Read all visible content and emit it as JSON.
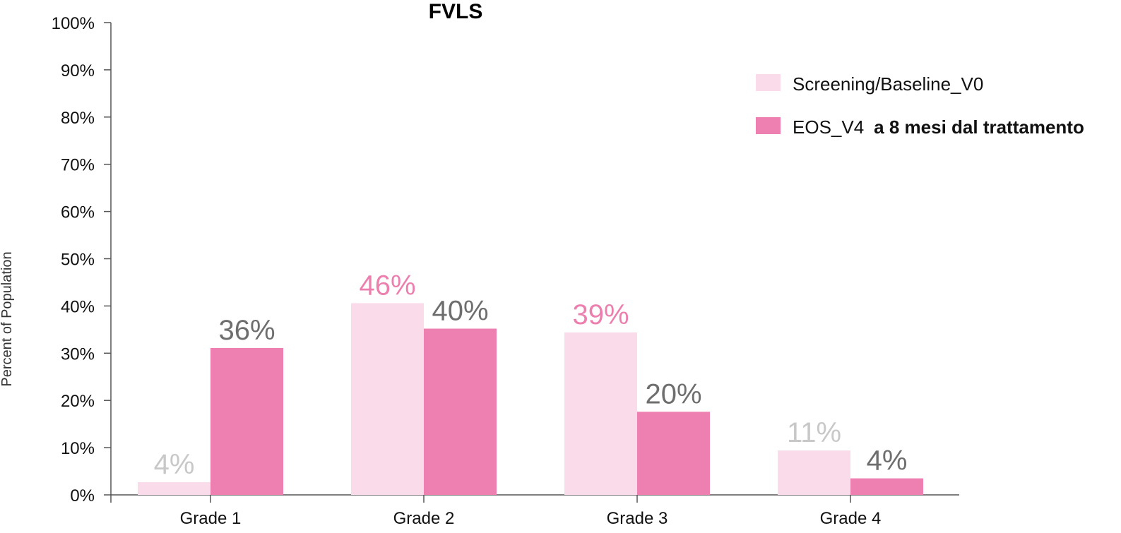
{
  "chart_data": {
    "type": "bar",
    "title": "FVLS",
    "ylabel": "Percent of Population",
    "xlabel": "",
    "categories": [
      "Grade 1",
      "Grade 2",
      "Grade 3",
      "Grade 4"
    ],
    "ylim": [
      0,
      100
    ],
    "yticks": [
      0,
      10,
      20,
      30,
      40,
      50,
      60,
      70,
      80,
      90,
      100
    ],
    "ytick_labels": [
      "0%",
      "10%",
      "20%",
      "30%",
      "40%",
      "50%",
      "60%",
      "70%",
      "80%",
      "90%",
      "100%"
    ],
    "grid": false,
    "legend_position": "top-right",
    "series": [
      {
        "name": "Screening/Baseline_V0",
        "color": "#fadbe9",
        "values": [
          2.7,
          40.6,
          34.4,
          9.4
        ],
        "labels": [
          "4%",
          "46%",
          "39%",
          "11%"
        ],
        "label_colors": [
          "#c8c8c8",
          "#ec7fae",
          "#ec7fae",
          "#c8c8c8"
        ]
      },
      {
        "name_part1": "EOS_V4",
        "name_part2": "a 8 mesi dal trattamento",
        "color": "#ee80b1",
        "values": [
          31.1,
          35.2,
          17.6,
          3.5
        ],
        "labels": [
          "36%",
          "40%",
          "20%",
          "4%"
        ],
        "label_colors": [
          "#6e6e6e",
          "#6e6e6e",
          "#6e6e6e",
          "#6e6e6e"
        ]
      }
    ]
  }
}
